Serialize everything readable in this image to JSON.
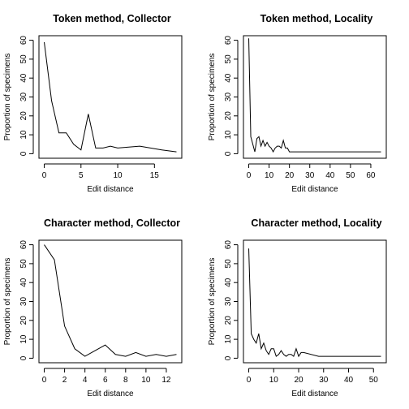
{
  "chart_data": [
    {
      "type": "line",
      "title": "Token method, Collector",
      "xlabel": "Edit distance",
      "ylabel": "Proportion of specimens",
      "xlim": [
        0,
        18
      ],
      "ylim": [
        0,
        60
      ],
      "xticks": [
        0,
        5,
        10,
        15
      ],
      "yticks": [
        0,
        10,
        20,
        30,
        40,
        50,
        60
      ],
      "grid": false,
      "series": [
        {
          "x": [
            0,
            1,
            2,
            3,
            4,
            5,
            6,
            7,
            8,
            9,
            10,
            13,
            16,
            18
          ],
          "y": [
            59,
            28,
            11,
            11,
            5,
            2,
            21,
            3,
            3,
            4,
            3,
            4,
            2,
            1
          ]
        }
      ]
    },
    {
      "type": "line",
      "title": "Token method, Locality",
      "xlabel": "Edit distance",
      "ylabel": "Proportion of specimens",
      "xlim": [
        0,
        65
      ],
      "ylim": [
        0,
        60
      ],
      "xticks": [
        0,
        10,
        20,
        30,
        40,
        50,
        60
      ],
      "yticks": [
        0,
        10,
        20,
        30,
        40,
        50,
        60
      ],
      "grid": false,
      "series": [
        {
          "x": [
            0,
            1,
            2,
            3,
            4,
            5,
            6,
            7,
            8,
            9,
            10,
            11,
            12,
            13,
            14,
            15,
            16,
            17,
            18,
            19,
            20,
            21,
            22,
            65
          ],
          "y": [
            61,
            9,
            5,
            1,
            8,
            9,
            4,
            7,
            4,
            6,
            4,
            3,
            1,
            3,
            4,
            4,
            3,
            7,
            3,
            3,
            1,
            1,
            1,
            1
          ]
        }
      ]
    },
    {
      "type": "line",
      "title": "Character method, Collector",
      "xlabel": "Edit distance",
      "ylabel": "Proportion of specimens",
      "xlim": [
        0,
        13
      ],
      "ylim": [
        0,
        60
      ],
      "xticks": [
        0,
        2,
        4,
        6,
        8,
        10,
        12
      ],
      "yticks": [
        0,
        10,
        20,
        30,
        40,
        50,
        60
      ],
      "grid": false,
      "series": [
        {
          "x": [
            0,
            1,
            2,
            3,
            4,
            5,
            6,
            7,
            8,
            9,
            10,
            11,
            12,
            13
          ],
          "y": [
            60,
            52,
            17,
            5,
            1,
            4,
            7,
            2,
            1,
            3,
            1,
            2,
            1,
            2
          ]
        }
      ]
    },
    {
      "type": "line",
      "title": "Character method, Locality",
      "xlabel": "Edit distance",
      "ylabel": "Proportion of specimens",
      "xlim": [
        0,
        53
      ],
      "ylim": [
        0,
        60
      ],
      "xticks": [
        0,
        10,
        20,
        30,
        40,
        50
      ],
      "yticks": [
        0,
        10,
        20,
        30,
        40,
        50,
        60
      ],
      "grid": false,
      "series": [
        {
          "x": [
            0,
            1,
            2,
            3,
            4,
            5,
            6,
            7,
            8,
            9,
            10,
            11,
            12,
            13,
            14,
            15,
            16,
            17,
            18,
            19,
            20,
            21,
            22,
            28,
            53
          ],
          "y": [
            58,
            13,
            10,
            8,
            13,
            5,
            8,
            4,
            2,
            5,
            5,
            1,
            2,
            4,
            2,
            1,
            2,
            2,
            1,
            5,
            1,
            3,
            3,
            1,
            1
          ]
        }
      ]
    }
  ]
}
